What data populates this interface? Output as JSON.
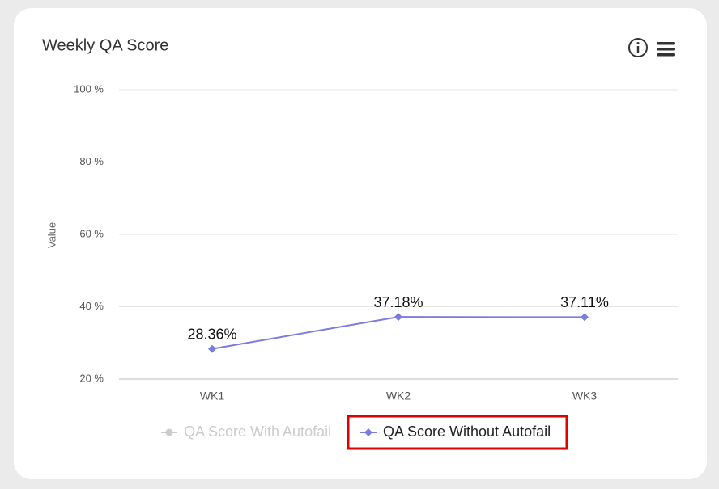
{
  "chart_data": {
    "type": "line",
    "title": "Weekly QA Score",
    "y_label": "Value",
    "categories": [
      "WK1",
      "WK2",
      "WK3"
    ],
    "series": [
      {
        "name": "QA Score With Autofail",
        "color": "#cccccc",
        "visible": false,
        "values": [
          null,
          null,
          null
        ]
      },
      {
        "name": "QA Score Without Autofail",
        "color": "#7b7be0",
        "visible": true,
        "values": [
          28.36,
          37.18,
          37.11
        ],
        "value_labels": [
          "28.36%",
          "37.18%",
          "37.11%"
        ]
      }
    ],
    "ylim": [
      20,
      100
    ],
    "yticks": [
      {
        "value": 20,
        "label": "20 %"
      },
      {
        "value": 40,
        "label": "40 %"
      },
      {
        "value": 60,
        "label": "60 %"
      },
      {
        "value": 80,
        "label": "80 %"
      },
      {
        "value": 100,
        "label": "100 %"
      }
    ],
    "grid": true
  }
}
